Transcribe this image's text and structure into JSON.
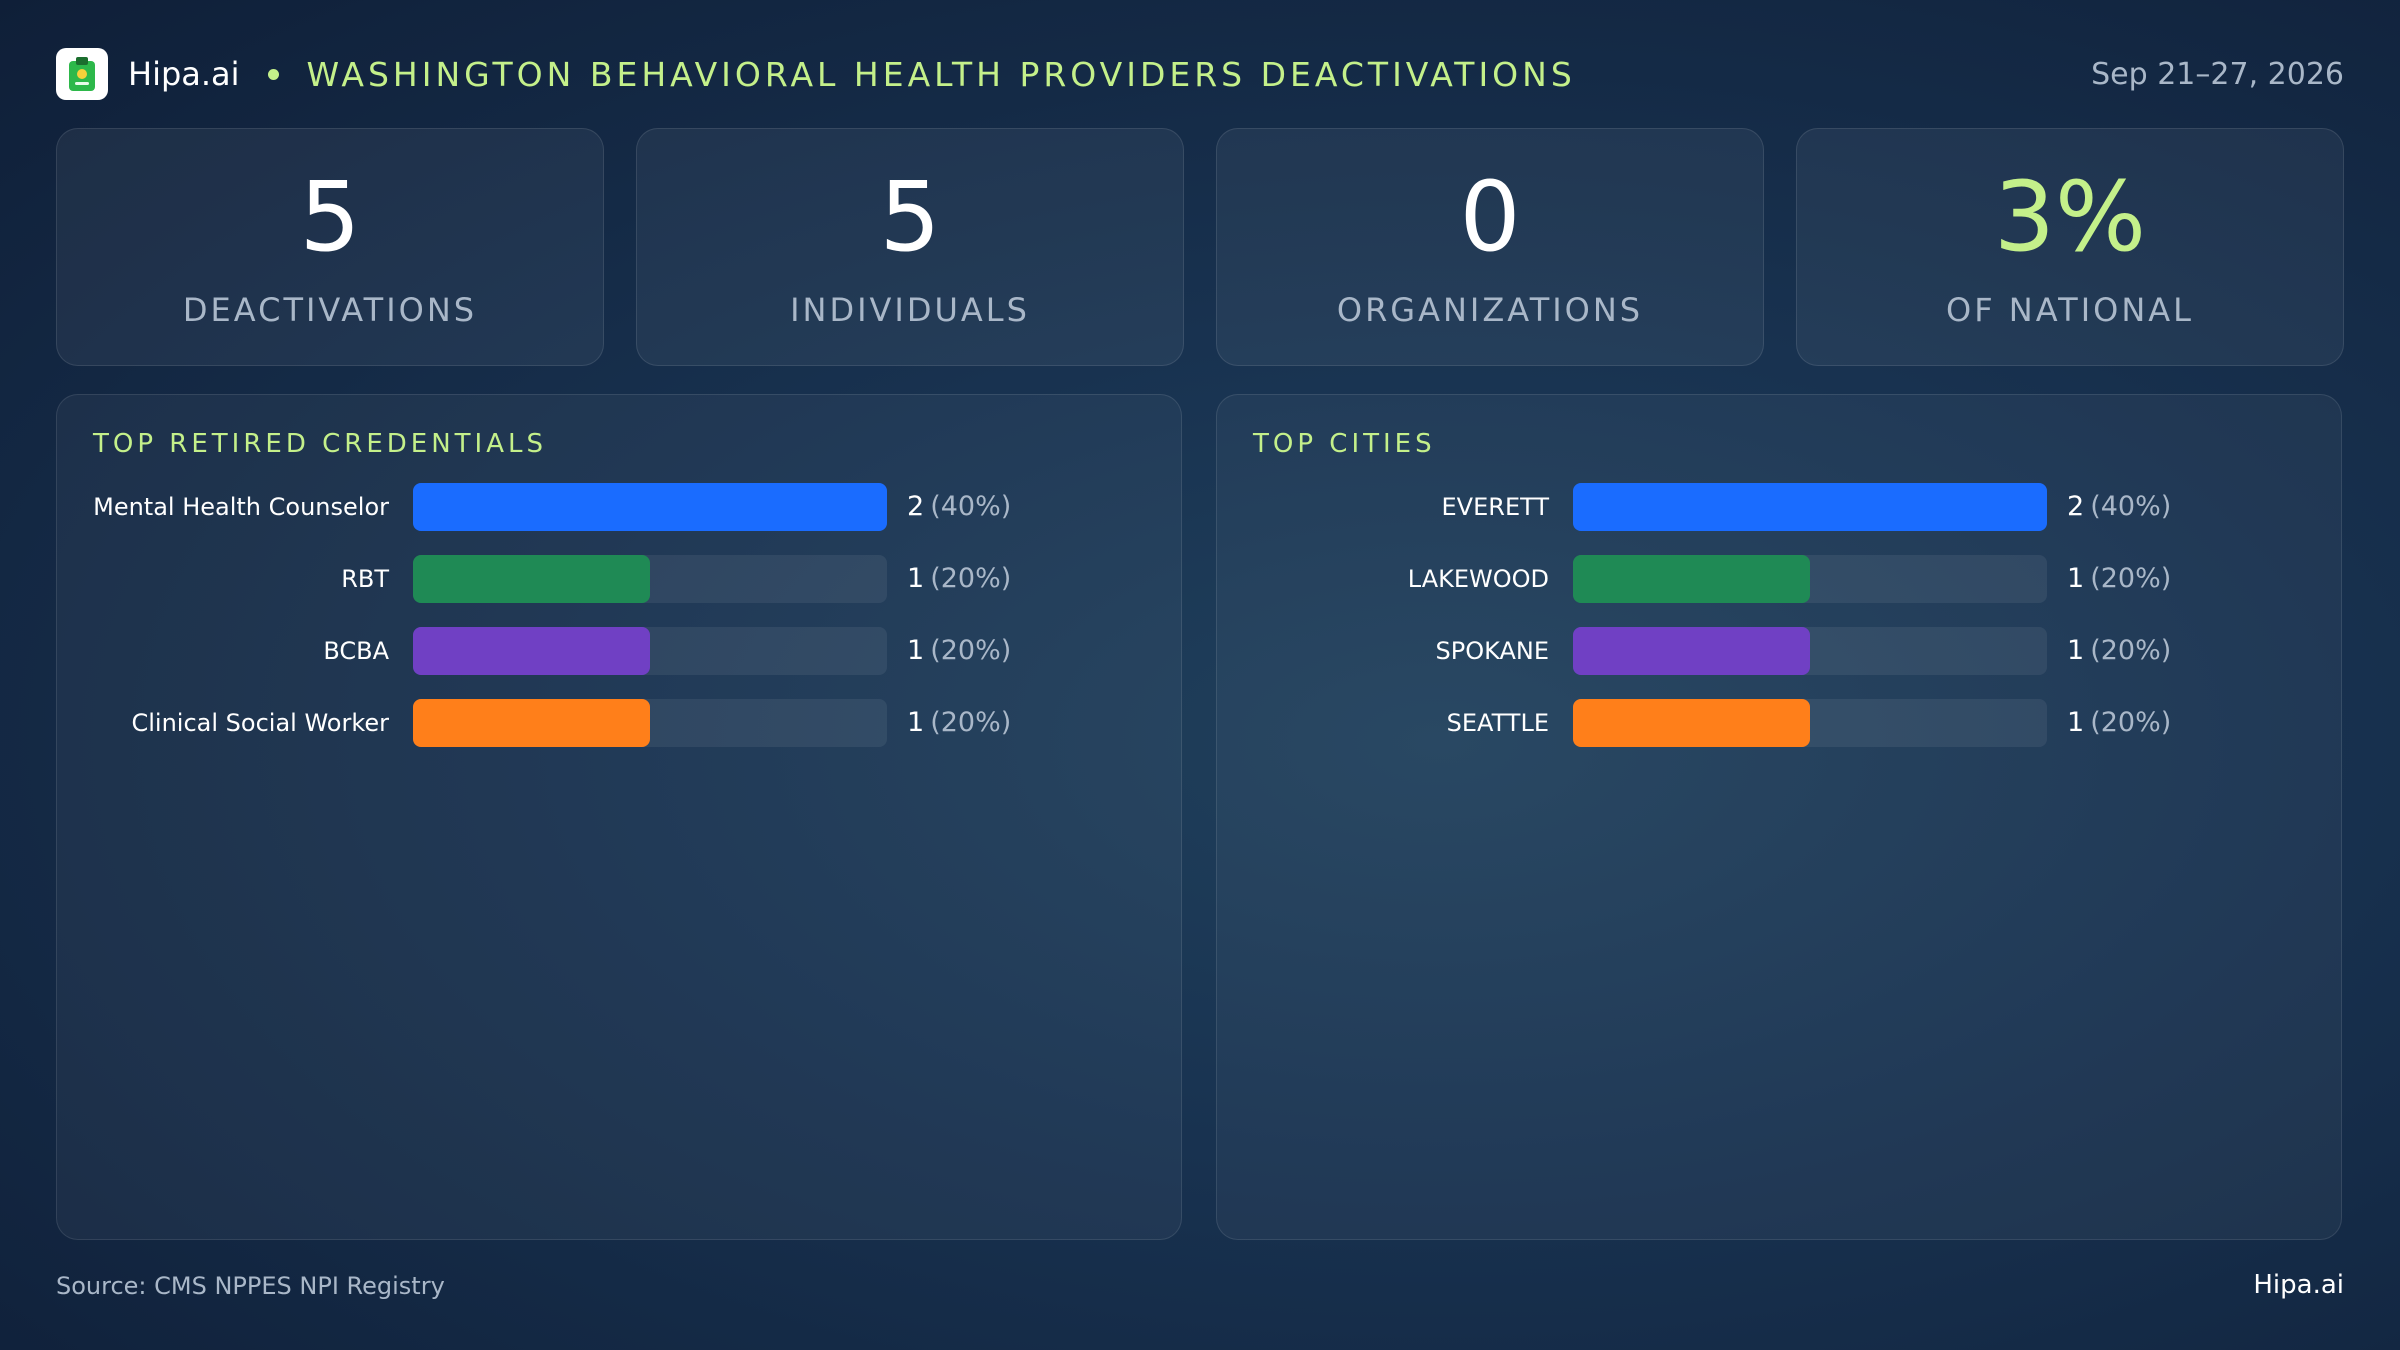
{
  "header": {
    "logo_icon": "clipboard-icon",
    "brand": "Hipa.ai",
    "title": "WASHINGTON BEHAVIORAL HEALTH PROVIDERS DEACTIVATIONS",
    "date": "Sep 21–27, 2026"
  },
  "kpis": [
    {
      "value": "5",
      "label": "DEACTIVATIONS",
      "accent": false
    },
    {
      "value": "5",
      "label": "INDIVIDUALS",
      "accent": false
    },
    {
      "value": "0",
      "label": "ORGANIZATIONS",
      "accent": false
    },
    {
      "value": "3%",
      "label": "OF NATIONAL",
      "accent": true
    }
  ],
  "colors": [
    "#1a6cff",
    "#1f8a55",
    "#7040c4",
    "#ff7f1a"
  ],
  "chart_data": [
    {
      "type": "bar",
      "orientation": "horizontal",
      "title": "TOP RETIRED CREDENTIALS",
      "categories": [
        "Mental Health Counselor",
        "RBT",
        "BCBA",
        "Clinical Social Worker"
      ],
      "values": [
        2,
        1,
        1,
        1
      ],
      "labels": [
        "2",
        "1",
        "1",
        "1"
      ],
      "pct_labels": [
        "(40%)",
        "(20%)",
        "(20%)",
        "(20%)"
      ],
      "xlim": [
        0,
        2
      ]
    },
    {
      "type": "bar",
      "orientation": "horizontal",
      "title": "TOP CITIES",
      "categories": [
        "EVERETT",
        "LAKEWOOD",
        "SPOKANE",
        "SEATTLE"
      ],
      "values": [
        2,
        1,
        1,
        1
      ],
      "labels": [
        "2",
        "1",
        "1",
        "1"
      ],
      "pct_labels": [
        "(40%)",
        "(20%)",
        "(20%)",
        "(20%)"
      ],
      "xlim": [
        0,
        2
      ]
    }
  ],
  "footer": {
    "source": "Source: CMS NPPES NPI Registry",
    "brand": "Hipa.ai"
  }
}
